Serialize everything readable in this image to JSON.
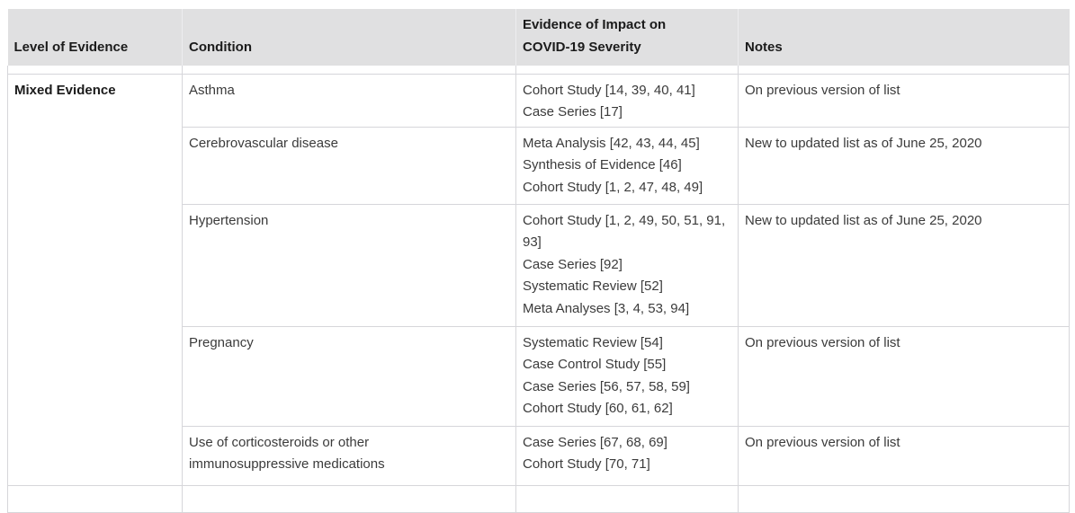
{
  "theme": {
    "header_bg": "#e0e0e1",
    "border_color": "#d6d6da",
    "header_text_color": "#1b1b1b",
    "body_text_color": "#3b3b3b",
    "page_bg": "#ffffff"
  },
  "table": {
    "columns": [
      {
        "label": "Level of Evidence"
      },
      {
        "label": "Condition"
      },
      {
        "label": "Evidence of Impact on COVID-19 Severity"
      },
      {
        "label": "Notes"
      }
    ],
    "groups": [
      {
        "level_of_evidence": "Mixed Evidence",
        "rows": [
          {
            "condition": "Asthma",
            "evidence": [
              "Cohort Study [14, 39, 40, 41]",
              "Case Series [17]"
            ],
            "notes": "On previous version of list"
          },
          {
            "condition": "Cerebrovascular disease",
            "evidence": [
              "Meta Analysis [42, 43, 44, 45]",
              "Synthesis of Evidence [46]",
              "Cohort Study [1, 2, 47, 48, 49]"
            ],
            "notes": "New to updated list as of June 25, 2020"
          },
          {
            "condition": "Hypertension",
            "evidence": [
              "Cohort Study [1, 2, 49, 50, 51, 91, 93]",
              "Case Series [92]",
              "Systematic Review [52]",
              "Meta Analyses [3, 4, 53, 94]"
            ],
            "notes": "New to updated list as of June 25, 2020"
          },
          {
            "condition": "Pregnancy",
            "evidence": [
              "Systematic Review [54]",
              "Case Control Study [55]",
              "Case Series [56, 57, 58, 59]",
              "Cohort Study [60, 61, 62]"
            ],
            "notes": "On previous version of list"
          },
          {
            "condition": "Use of corticosteroids or other immunosuppressive medications",
            "evidence": [
              "Case Series [67, 68, 69]",
              "Cohort Study [70, 71]"
            ],
            "notes": "On previous version of list"
          }
        ]
      }
    ],
    "partial_next_row_visible": true
  }
}
